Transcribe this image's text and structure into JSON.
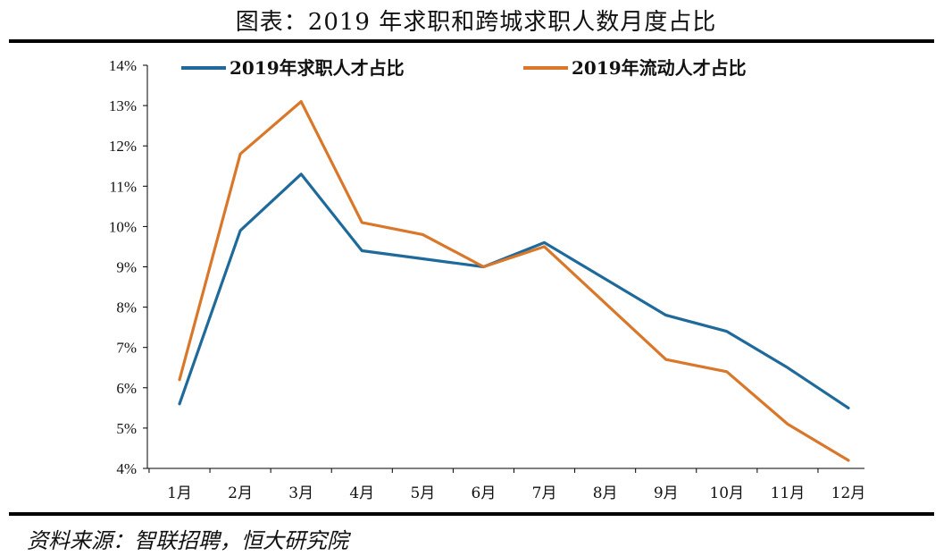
{
  "title": "图表：2019 年求职和跨城求职人数月度占比",
  "source": "资料来源：智联招聘，恒大研究院",
  "colors": {
    "series1": "#1f6a9a",
    "series2": "#d9772a",
    "axis": "#000000"
  },
  "chart_data": {
    "type": "line",
    "categories": [
      "1月",
      "2月",
      "3月",
      "4月",
      "5月",
      "6月",
      "7月",
      "8月",
      "9月",
      "10月",
      "11月",
      "12月"
    ],
    "series": [
      {
        "name": "2019年求职人才占比",
        "color": "#1f6a9a",
        "values": [
          5.6,
          9.9,
          11.3,
          9.4,
          9.2,
          9.0,
          9.6,
          8.7,
          7.8,
          7.4,
          6.5,
          5.5
        ]
      },
      {
        "name": "2019年流动人才占比",
        "color": "#d9772a",
        "values": [
          6.2,
          11.8,
          13.1,
          10.1,
          9.8,
          9.0,
          9.5,
          8.1,
          6.7,
          6.4,
          5.1,
          4.2
        ]
      }
    ],
    "yticks": [
      "4%",
      "5%",
      "6%",
      "7%",
      "8%",
      "9%",
      "10%",
      "11%",
      "12%",
      "13%",
      "14%"
    ],
    "ylim": [
      4,
      14
    ],
    "grid": false,
    "legend": "top"
  }
}
